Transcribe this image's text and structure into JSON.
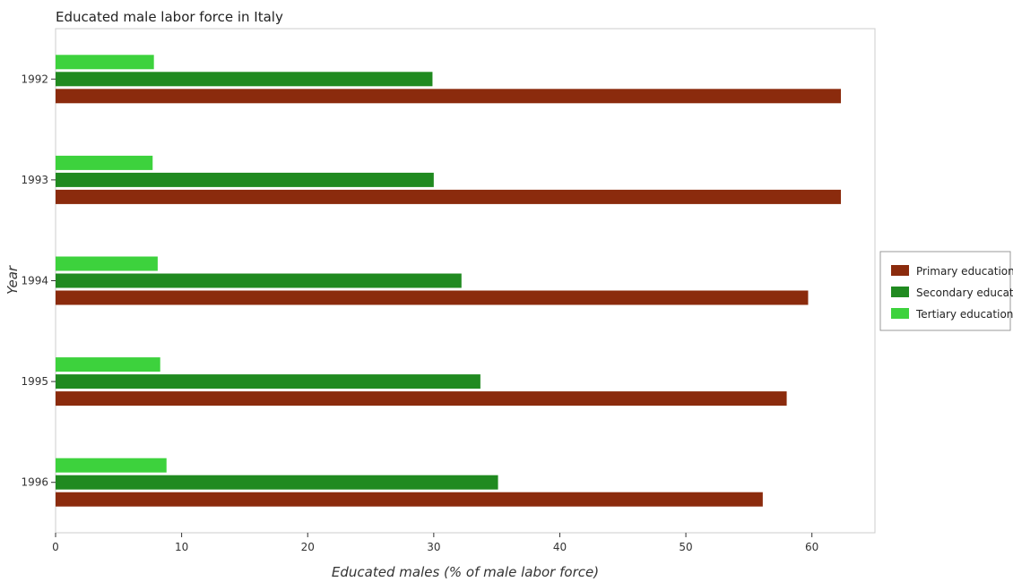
{
  "chart_data": {
    "type": "bar",
    "orientation": "horizontal",
    "title": "Educated male labor force in Italy",
    "xlabel": "Educated males (% of male labor force)",
    "ylabel": "Year",
    "categories": [
      "1992",
      "1993",
      "1994",
      "1995",
      "1996"
    ],
    "xlim": [
      0,
      65
    ],
    "xticks": [
      0,
      10,
      20,
      30,
      40,
      50,
      60
    ],
    "grid": false,
    "legend_position": "right",
    "series": [
      {
        "name": "Primary education",
        "color": "#8b2b0d",
        "values": [
          62.3,
          62.3,
          59.7,
          58.0,
          56.1
        ]
      },
      {
        "name": "Secondary education",
        "color": "#208a20",
        "values": [
          29.9,
          30.0,
          32.2,
          33.7,
          35.1
        ]
      },
      {
        "name": "Tertiary education",
        "color": "#3dd23d",
        "values": [
          7.8,
          7.7,
          8.1,
          8.3,
          8.8
        ]
      }
    ]
  }
}
